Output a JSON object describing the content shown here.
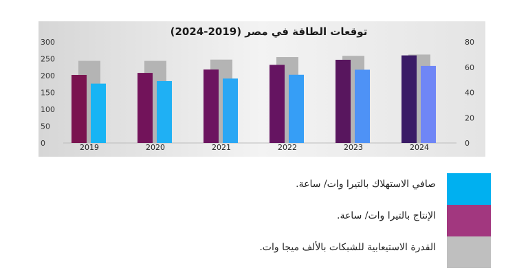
{
  "chart_data": {
    "type": "bar",
    "title": "توقعات الطاقة في مصر (2019-2024)",
    "categories": [
      "2019",
      "2020",
      "2021",
      "2022",
      "2023",
      "2024"
    ],
    "series": [
      {
        "name": "القدرة الاستيعابية للشبكات بالألف ميجا وات.",
        "axis": "right",
        "color": "#b4b4b4",
        "values": [
          65,
          65,
          66,
          68,
          69,
          70
        ]
      },
      {
        "name": "الإنتاج بالتيرا وات/ ساعة.",
        "axis": "left",
        "colors": [
          "#7a1450",
          "#72135a",
          "#6c1460",
          "#651461",
          "#58165e",
          "#3a1b66"
        ],
        "values": [
          202,
          208,
          218,
          232,
          247,
          260
        ]
      },
      {
        "name": "صافي الاستهلاك بالتيرا وات/ ساعة.",
        "axis": "right",
        "colors": [
          "#18b4f4",
          "#1fb0f4",
          "#2aa7f4",
          "#369ef6",
          "#4e92f6",
          "#6f86f6"
        ],
        "values": [
          47,
          49,
          51,
          54,
          58,
          61
        ]
      }
    ],
    "y_left": {
      "ylim": [
        0,
        300
      ],
      "ticks": [
        "0",
        "50",
        "100",
        "150",
        "200",
        "250",
        "300"
      ]
    },
    "y_right": {
      "ylim": [
        0,
        80
      ],
      "ticks": [
        "0",
        "20",
        "40",
        "60",
        "80"
      ]
    },
    "grid": false,
    "legend_position": "below-right"
  },
  "legend": [
    {
      "label": "صافي الاستهلاك بالتيرا وات/ ساعة.",
      "color": "#00b0f0"
    },
    {
      "label": "الإنتاج بالتيرا وات/ ساعة.",
      "color": "#a2377f"
    },
    {
      "label": "القدرة الاستيعابية للشبكات بالألف ميجا وات.",
      "color": "#bfbfbf"
    }
  ]
}
